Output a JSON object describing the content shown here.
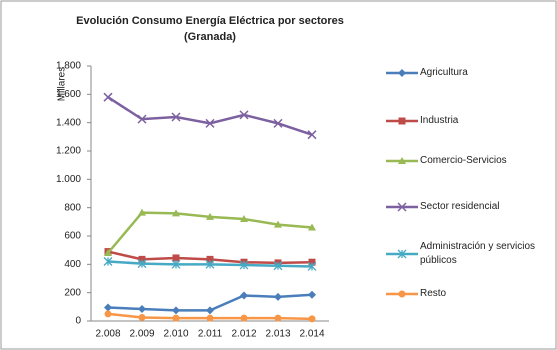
{
  "chart_data": {
    "type": "line",
    "title": "Evolución Consumo Energía Eléctrica por sectores",
    "subtitle": "(Granada)",
    "y_label": "Millares",
    "categories": [
      "2.008",
      "2.009",
      "2.010",
      "2.011",
      "2.012",
      "2.013",
      "2.014"
    ],
    "ylim": [
      0,
      1800
    ],
    "yticks": [
      0,
      200,
      400,
      600,
      800,
      {
        "value": 1000,
        "label": "1.000"
      },
      {
        "value": 1200,
        "label": "1.200"
      },
      {
        "value": 1400,
        "label": "1.400"
      },
      {
        "value": 1600,
        "label": "1.600"
      },
      {
        "value": 1800,
        "label": "1.800"
      }
    ],
    "legend": "right",
    "series": [
      {
        "name": "Agricultura",
        "color": "#4a7ebb",
        "marker": "diamond",
        "values": [
          95,
          85,
          75,
          75,
          180,
          170,
          185
        ]
      },
      {
        "name": "Industria",
        "color": "#be4b48",
        "marker": "square",
        "values": [
          490,
          435,
          445,
          435,
          415,
          410,
          415
        ]
      },
      {
        "name": "Comercio-Servicios",
        "color": "#98b954",
        "marker": "triangle",
        "values": [
          480,
          765,
          760,
          735,
          720,
          680,
          660
        ]
      },
      {
        "name": "Sector residencial",
        "color": "#7d60a0",
        "marker": "x",
        "values": [
          1580,
          1425,
          1440,
          1395,
          1455,
          1395,
          1315
        ]
      },
      {
        "name": "Administración y servicios públicos",
        "color": "#46aac5",
        "marker": "star",
        "values": [
          420,
          405,
          400,
          400,
          395,
          390,
          385
        ]
      },
      {
        "name": "Resto",
        "color": "#f79646",
        "marker": "circle",
        "values": [
          50,
          25,
          20,
          20,
          20,
          20,
          15
        ]
      }
    ]
  }
}
